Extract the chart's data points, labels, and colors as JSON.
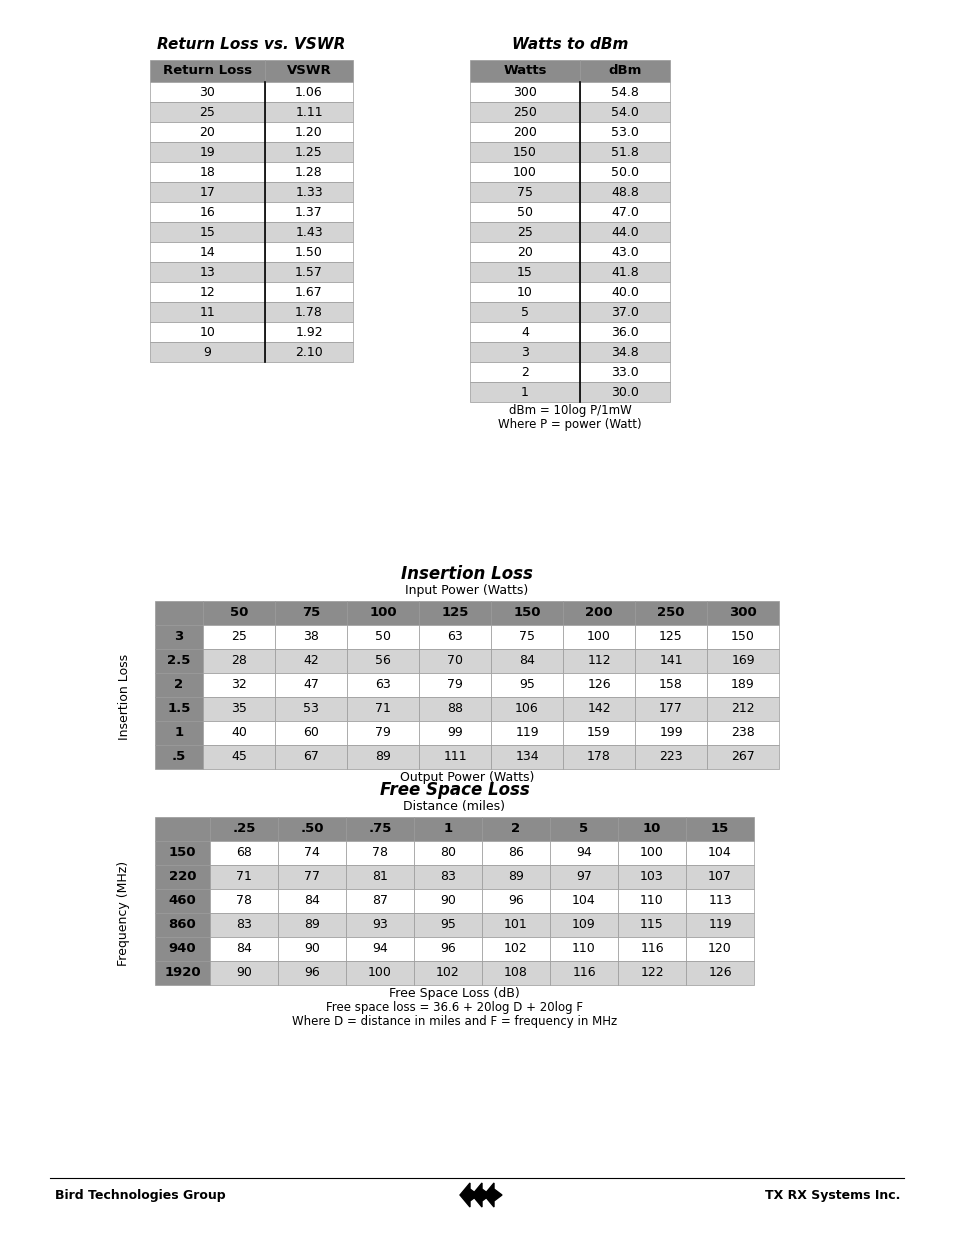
{
  "page_bg": "#ffffff",
  "rl_vswr_title": "Return Loss vs. VSWR",
  "rl_vswr_header": [
    "Return Loss",
    "VSWR"
  ],
  "rl_vswr_data": [
    [
      "30",
      "1.06"
    ],
    [
      "25",
      "1.11"
    ],
    [
      "20",
      "1.20"
    ],
    [
      "19",
      "1.25"
    ],
    [
      "18",
      "1.28"
    ],
    [
      "17",
      "1.33"
    ],
    [
      "16",
      "1.37"
    ],
    [
      "15",
      "1.43"
    ],
    [
      "14",
      "1.50"
    ],
    [
      "13",
      "1.57"
    ],
    [
      "12",
      "1.67"
    ],
    [
      "11",
      "1.78"
    ],
    [
      "10",
      "1.92"
    ],
    [
      "9",
      "2.10"
    ]
  ],
  "rl_vswr_shaded_rows": [
    1,
    3,
    5,
    7,
    9,
    11,
    13
  ],
  "watts_dbm_title": "Watts to dBm",
  "watts_dbm_header": [
    "Watts",
    "dBm"
  ],
  "watts_dbm_data": [
    [
      "300",
      "54.8"
    ],
    [
      "250",
      "54.0"
    ],
    [
      "200",
      "53.0"
    ],
    [
      "150",
      "51.8"
    ],
    [
      "100",
      "50.0"
    ],
    [
      "75",
      "48.8"
    ],
    [
      "50",
      "47.0"
    ],
    [
      "25",
      "44.0"
    ],
    [
      "20",
      "43.0"
    ],
    [
      "15",
      "41.8"
    ],
    [
      "10",
      "40.0"
    ],
    [
      "5",
      "37.0"
    ],
    [
      "4",
      "36.0"
    ],
    [
      "3",
      "34.8"
    ],
    [
      "2",
      "33.0"
    ],
    [
      "1",
      "30.0"
    ]
  ],
  "watts_dbm_shaded_rows": [
    1,
    3,
    5,
    7,
    9,
    11,
    13,
    15
  ],
  "watts_dbm_note1": "dBm = 10log P/1mW",
  "watts_dbm_note2": "Where P = power (Watt)",
  "insertion_title": "Insertion Loss",
  "insertion_subtitle": "Input Power (Watts)",
  "insertion_col_header": [
    "",
    "50",
    "75",
    "100",
    "125",
    "150",
    "200",
    "250",
    "300"
  ],
  "insertion_row_labels": [
    "3",
    "2.5",
    "2",
    "1.5",
    "1",
    ".5"
  ],
  "insertion_data": [
    [
      25,
      38,
      50,
      63,
      75,
      100,
      125,
      150
    ],
    [
      28,
      42,
      56,
      70,
      84,
      112,
      141,
      169
    ],
    [
      32,
      47,
      63,
      79,
      95,
      126,
      158,
      189
    ],
    [
      35,
      53,
      71,
      88,
      106,
      142,
      177,
      212
    ],
    [
      40,
      60,
      79,
      99,
      119,
      159,
      199,
      238
    ],
    [
      45,
      67,
      89,
      111,
      134,
      178,
      223,
      267
    ]
  ],
  "insertion_shaded_rows": [
    1,
    3,
    5
  ],
  "insertion_ylabel": "Insertion Loss",
  "insertion_xlabel": "Output Power (Watts)",
  "fsl_title": "Free Space Loss",
  "fsl_subtitle": "Distance (miles)",
  "fsl_col_header": [
    "",
    ".25",
    ".50",
    ".75",
    "1",
    "2",
    "5",
    "10",
    "15"
  ],
  "fsl_row_labels": [
    "150",
    "220",
    "460",
    "860",
    "940",
    "1920"
  ],
  "fsl_data": [
    [
      68,
      74,
      78,
      80,
      86,
      94,
      100,
      104
    ],
    [
      71,
      77,
      81,
      83,
      89,
      97,
      103,
      107
    ],
    [
      78,
      84,
      87,
      90,
      96,
      104,
      110,
      113
    ],
    [
      83,
      89,
      93,
      95,
      101,
      109,
      115,
      119
    ],
    [
      84,
      90,
      94,
      96,
      102,
      110,
      116,
      120
    ],
    [
      90,
      96,
      100,
      102,
      108,
      116,
      122,
      126
    ]
  ],
  "fsl_shaded_rows": [
    1,
    3,
    5
  ],
  "fsl_ylabel": "Frequency (MHz)",
  "fsl_xlabel": "Free Space Loss (dB)",
  "fsl_note1": "Free space loss = 36.6 + 20log D + 20log F",
  "fsl_note2": "Where D = distance in miles and F = frequency in MHz",
  "footer_left": "Bird Technologies Group",
  "footer_right": "TX RX Systems Inc.",
  "shaded_color": "#d4d4d4",
  "white_color": "#ffffff",
  "dark_header_color": "#8c8c8c",
  "border_color": "#999999"
}
